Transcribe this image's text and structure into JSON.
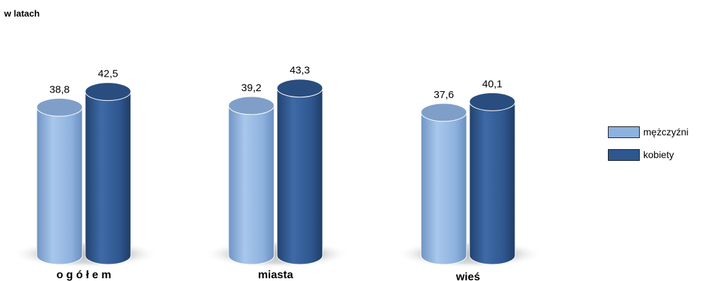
{
  "unit_label": "w latach",
  "chart_data": {
    "type": "bar",
    "categories": [
      "o g ó ł e m",
      "miasta",
      "wieś"
    ],
    "series": [
      {
        "name": "mężczyźni",
        "values": [
          38.8,
          39.2,
          37.6
        ],
        "value_labels": [
          "38,8",
          "39,2",
          "37,6"
        ]
      },
      {
        "name": "kobiety",
        "values": [
          42.5,
          43.3,
          40.1
        ],
        "value_labels": [
          "42,5",
          "43,3",
          "40,1"
        ]
      }
    ],
    "legend_position": "right",
    "grid": false,
    "style": "3D cylinders"
  },
  "colors": {
    "mezczyzni": "#8eb2de",
    "kobiety": "#2f578f"
  }
}
